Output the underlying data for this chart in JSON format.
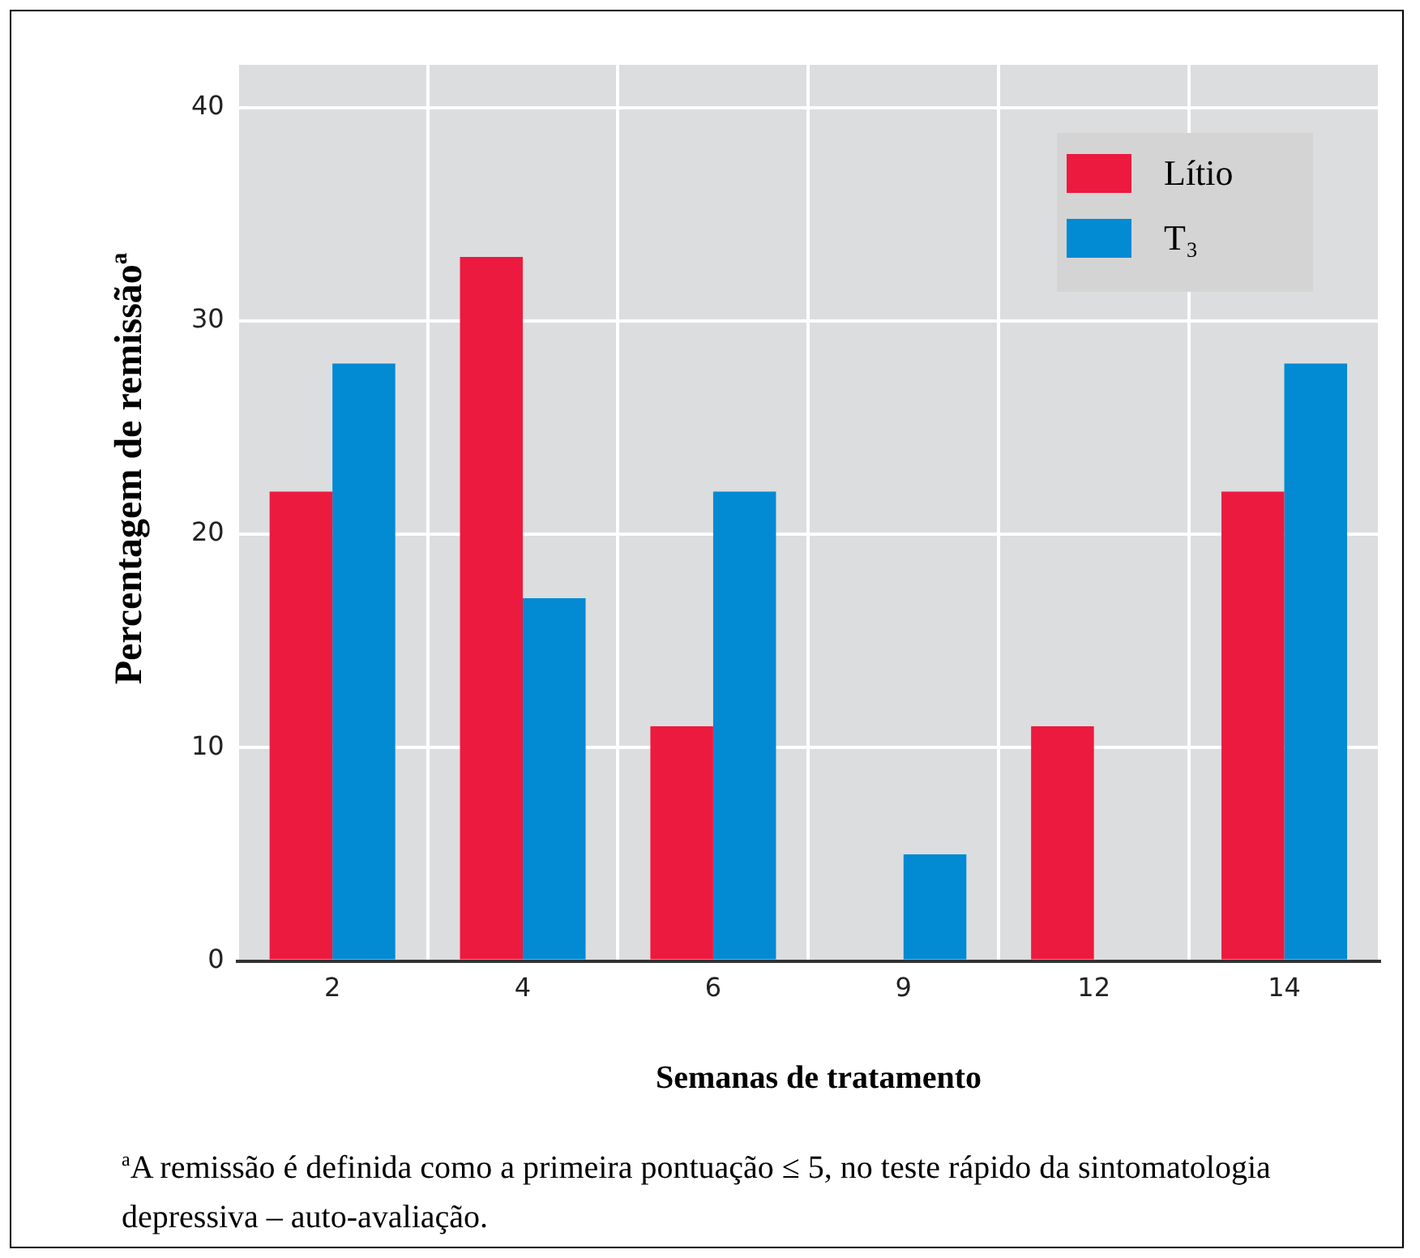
{
  "chart_data": {
    "type": "bar",
    "xlabel": "Semanas de tratamento",
    "ylabel": "Percentagem de remissão$^{a}$",
    "categories": [
      "2",
      "4",
      "6",
      "9",
      "12",
      "14"
    ],
    "series": [
      {
        "name": "Lítio",
        "color": "#ec1a3f",
        "values": [
          22,
          33,
          11,
          0,
          11,
          22
        ]
      },
      {
        "name": "T₃",
        "color": "#028ad3",
        "values": [
          28,
          17,
          22,
          5,
          0,
          28
        ]
      }
    ],
    "ylim": [
      0,
      42
    ],
    "yticks": [
      0,
      10,
      20,
      30,
      40
    ],
    "grid": true,
    "legend": "top right",
    "annotations": [
      "$^{a}$A remissão é definida como a primeira pontuação ≤ 5, no teste rápido da sintomatologia depressiva – auto-avaliação."
    ]
  }
}
